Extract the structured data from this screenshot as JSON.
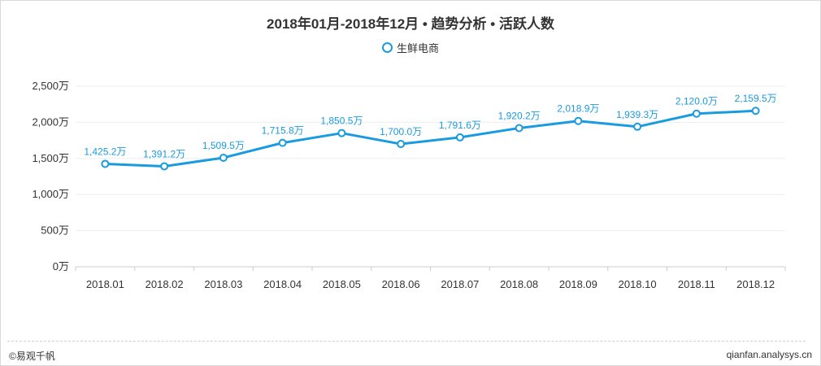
{
  "chart_data": {
    "type": "line",
    "title": "2018年01月-2018年12月 • 趋势分析 • 活跃人数",
    "categories": [
      "2018.01",
      "2018.02",
      "2018.03",
      "2018.04",
      "2018.05",
      "2018.06",
      "2018.07",
      "2018.08",
      "2018.09",
      "2018.10",
      "2018.11",
      "2018.12"
    ],
    "series": [
      {
        "name": "生鲜电商",
        "values": [
          1425.2,
          1391.2,
          1509.5,
          1715.8,
          1850.5,
          1700.0,
          1791.6,
          1920.2,
          2018.9,
          1939.3,
          2120.0,
          2159.5
        ],
        "labels": [
          "1,425.2万",
          "1,391.2万",
          "1,509.5万",
          "1,715.8万",
          "1,850.5万",
          "1,700.0万",
          "1,791.6万",
          "1,920.2万",
          "2,018.9万",
          "1,939.3万",
          "2,120.0万",
          "2,159.5万"
        ],
        "color": "#1a9be0"
      }
    ],
    "yticks": [
      0,
      500,
      1000,
      1500,
      2000,
      2500
    ],
    "ytick_labels": [
      "0万",
      "500万",
      "1,000万",
      "1,500万",
      "2,000万",
      "2,500万"
    ],
    "ylim": [
      0,
      2500
    ],
    "xlabel": "",
    "ylabel": "",
    "grid": true,
    "legend_position": "top-center"
  },
  "footer": {
    "brand": "©易观千帆",
    "site": "qianfan.analysys.cn"
  }
}
